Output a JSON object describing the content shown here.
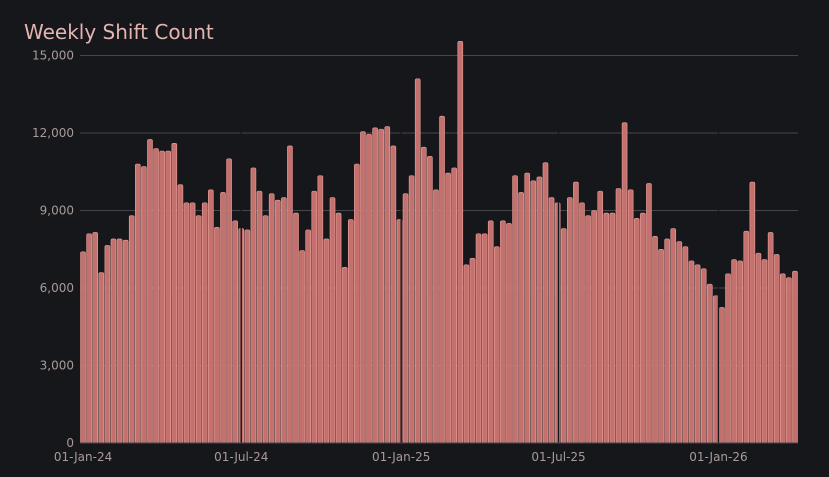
{
  "colors": {
    "background": "#16171b",
    "bar_fill": "#c4716e",
    "bar_edge": "#e8a19d",
    "grid": "#45464b",
    "title": "#e3b4b0",
    "tick_text": "#a89a98"
  },
  "chart_data": {
    "type": "bar",
    "title": "Weekly Shift Count",
    "xlabel": "",
    "ylabel": "",
    "x_start": "2024-01-01",
    "x_interval": "weekly",
    "ylim": [
      0,
      15600
    ],
    "yticks": [
      0,
      3000,
      6000,
      9000,
      12000,
      15000
    ],
    "ytick_labels": [
      "0",
      "3,000",
      "6,000",
      "9,000",
      "12,000",
      "15,000"
    ],
    "xtick_labels": [
      "01-Jan-24",
      "01-Jul-24",
      "01-Jan-25",
      "01-Jul-25",
      "01-Jan-26"
    ],
    "xtick_dates": [
      "2024-01-01",
      "2024-07-01",
      "2025-01-01",
      "2025-07-01",
      "2026-01-01"
    ],
    "grid": "horizontal",
    "legend": "none",
    "values": [
      7400,
      8100,
      8150,
      6600,
      7650,
      7900,
      7900,
      7850,
      8800,
      10800,
      10700,
      11750,
      11400,
      11300,
      11300,
      11600,
      10000,
      9300,
      9300,
      8800,
      9300,
      9800,
      8350,
      9700,
      11000,
      8600,
      8300,
      8250,
      10650,
      9750,
      8800,
      9650,
      9400,
      9500,
      11500,
      8900,
      7450,
      8250,
      9750,
      10350,
      7900,
      9500,
      8900,
      6800,
      8650,
      10800,
      12050,
      11950,
      12200,
      12150,
      12250,
      11500,
      8650,
      9650,
      10350,
      14100,
      11450,
      11100,
      9800,
      12650,
      10450,
      10650,
      15550,
      6900,
      7150,
      8100,
      8100,
      8600,
      7600,
      8600,
      8500,
      10350,
      9700,
      10450,
      10150,
      10300,
      10850,
      9500,
      9300,
      8300,
      9500,
      10100,
      9300,
      8800,
      9000,
      9750,
      8900,
      8900,
      9850,
      12400,
      9800,
      8700,
      8900,
      10050,
      8000,
      7500,
      7900,
      8300,
      7800,
      7600,
      7050,
      6900,
      6750,
      6150,
      5700,
      5250,
      6550,
      7100,
      7050,
      8200,
      10100,
      7350,
      7100,
      8150,
      7300,
      6550,
      6400,
      6650
    ]
  }
}
